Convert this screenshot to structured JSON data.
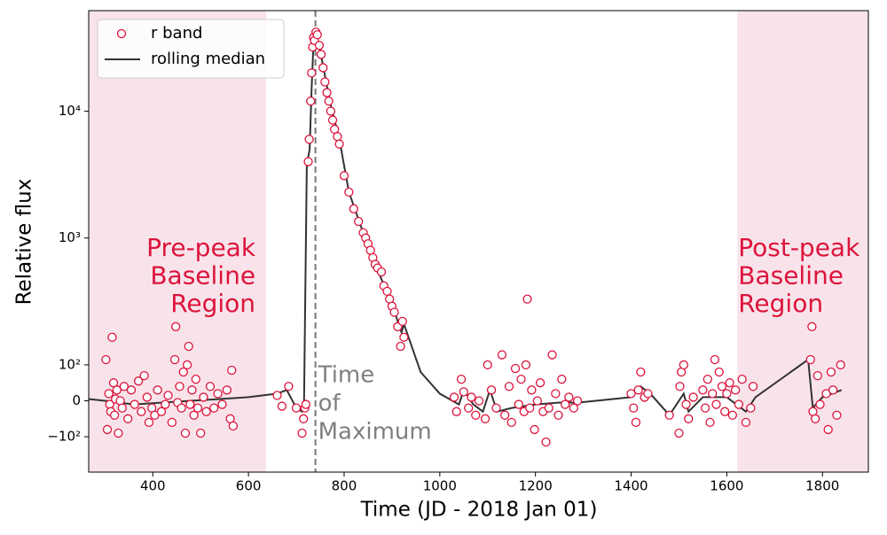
{
  "chart_data": {
    "type": "scatter",
    "xlabel": "Time (JD - 2018 Jan 01)",
    "ylabel": "Relative flux",
    "yscale": "symlog",
    "linthresh": 100,
    "linscale": 0.255,
    "xlim": [
      266,
      1896
    ],
    "ylim": [
      -190,
      62000
    ],
    "xticks": [
      400,
      600,
      800,
      1000,
      1200,
      1400,
      1600,
      1800
    ],
    "yticks": [
      {
        "value": -100,
        "label": "−10²"
      },
      0,
      {
        "value": 100,
        "label": "10²"
      },
      {
        "value": 1000,
        "label": "10³"
      },
      {
        "value": 10000,
        "label": "10⁴"
      }
    ],
    "legend": "upper left",
    "shade_color": "#f9e3ea",
    "shaded_regions": [
      [
        266,
        637
      ],
      [
        1622,
        1896
      ]
    ],
    "vline": {
      "x": 740,
      "color": "#777777",
      "style": "dashed"
    },
    "annotations": [
      {
        "lines": [
          "Pre-peak",
          "Baseline",
          "Region"
        ],
        "color": "#dc143c"
      },
      {
        "lines": [
          "Time",
          "of",
          "Maximum"
        ],
        "color": "#808080"
      },
      {
        "lines": [
          "Post-peak",
          "Baseline",
          "Region"
        ],
        "color": "#dc143c"
      }
    ],
    "series": [
      {
        "name": "r band",
        "type": "scatter",
        "color": "#dc143c",
        "x": [
          302,
          305,
          308,
          310,
          312,
          315,
          318,
          320,
          322,
          325,
          328,
          332,
          336,
          340,
          348,
          355,
          362,
          370,
          376,
          382,
          388,
          392,
          398,
          404,
          410,
          418,
          426,
          432,
          440,
          446,
          448,
          452,
          456,
          460,
          464,
          468,
          472,
          475,
          478,
          482,
          486,
          490,
          494,
          500,
          506,
          512,
          520,
          528,
          536,
          545,
          555,
          562,
          565,
          568,
          660,
          670,
          684,
          700,
          712,
          715,
          718,
          720,
          725,
          727,
          730,
          732,
          734,
          736,
          738,
          741,
          744,
          748,
          752,
          756,
          760,
          764,
          768,
          772,
          776,
          780,
          786,
          790,
          800,
          810,
          820,
          830,
          840,
          845,
          850,
          855,
          860,
          865,
          870,
          878,
          883,
          890,
          895,
          900,
          905,
          912,
          918,
          922,
          925,
          1030,
          1035,
          1045,
          1050,
          1060,
          1066,
          1075,
          1082,
          1095,
          1100,
          1108,
          1118,
          1130,
          1136,
          1145,
          1150,
          1158,
          1165,
          1170,
          1176,
          1180,
          1183,
          1188,
          1192,
          1198,
          1204,
          1210,
          1216,
          1222,
          1228,
          1235,
          1242,
          1248,
          1255,
          1262,
          1270,
          1280,
          1288,
          1400,
          1405,
          1410,
          1415,
          1420,
          1428,
          1435,
          1480,
          1500,
          1502,
          1505,
          1510,
          1515,
          1520,
          1530,
          1550,
          1555,
          1560,
          1565,
          1570,
          1575,
          1578,
          1584,
          1590,
          1596,
          1600,
          1606,
          1612,
          1618,
          1625,
          1632,
          1640,
          1650,
          1655,
          1775,
          1778,
          1780,
          1785,
          1790,
          1795,
          1808,
          1812,
          1818,
          1822,
          1830,
          1838
        ],
        "values": [
          110,
          -80,
          20,
          -10,
          -30,
          165,
          50,
          -40,
          5,
          30,
          -90,
          0,
          -20,
          40,
          -50,
          30,
          -10,
          55,
          -30,
          70,
          10,
          -60,
          -20,
          -40,
          30,
          -30,
          -10,
          15,
          -60,
          110,
          200,
          -5,
          40,
          -20,
          80,
          -90,
          100,
          140,
          -10,
          30,
          -40,
          60,
          -20,
          -90,
          10,
          -30,
          40,
          -20,
          20,
          -10,
          30,
          -50,
          85,
          -70,
          15,
          -15,
          40,
          -20,
          -90,
          -50,
          -20,
          -10,
          4000,
          6000,
          12000,
          20000,
          32000,
          38000,
          36000,
          42000,
          40000,
          33000,
          28000,
          22000,
          17000,
          14000,
          12000,
          10000,
          8500,
          7200,
          6300,
          5500,
          3100,
          2300,
          1700,
          1350,
          1100,
          1000,
          900,
          800,
          700,
          620,
          580,
          540,
          420,
          380,
          330,
          290,
          260,
          200,
          140,
          220,
          165,
          10,
          -30,
          60,
          25,
          -20,
          10,
          -40,
          0,
          -50,
          100,
          30,
          -20,
          120,
          -40,
          40,
          -60,
          90,
          -10,
          60,
          -30,
          100,
          330,
          -20,
          30,
          -80,
          0,
          50,
          -30,
          -110,
          -20,
          120,
          20,
          -40,
          60,
          -10,
          10,
          -20,
          0,
          20,
          -20,
          -60,
          30,
          80,
          10,
          20,
          -40,
          -90,
          40,
          80,
          100,
          -10,
          -50,
          10,
          30,
          -20,
          60,
          -60,
          20,
          110,
          -10,
          80,
          40,
          -30,
          20,
          50,
          -40,
          30,
          -10,
          60,
          -60,
          -20,
          40,
          110,
          200,
          -30,
          -50,
          70,
          -10,
          20,
          -80,
          80,
          30,
          -40,
          100
        ]
      },
      {
        "name": "rolling median",
        "type": "line",
        "color": "#333333",
        "x": [
          266,
          300,
          360,
          420,
          480,
          540,
          600,
          660,
          680,
          700,
          712,
          716,
          722,
          728,
          732,
          736,
          742,
          750,
          770,
          790,
          810,
          840,
          870,
          900,
          920,
          925,
          960,
          1000,
          1040,
          1050,
          1070,
          1090,
          1105,
          1120,
          1150,
          1200,
          1250,
          1290,
          1400,
          1420,
          1440,
          1480,
          1510,
          1520,
          1550,
          1600,
          1640,
          1660,
          1770,
          1780,
          1800,
          1840
        ],
        "values": [
          5,
          0,
          -10,
          -5,
          0,
          5,
          10,
          20,
          30,
          -20,
          -30,
          -20,
          3800,
          5000,
          15000,
          35000,
          38000,
          30000,
          12000,
          6000,
          2300,
          1100,
          560,
          300,
          180,
          210,
          80,
          20,
          -10,
          30,
          -10,
          -30,
          30,
          -30,
          -20,
          -10,
          -5,
          -5,
          10,
          40,
          20,
          -40,
          20,
          -30,
          10,
          10,
          -30,
          10,
          110,
          -20,
          10,
          30
        ]
      }
    ]
  }
}
